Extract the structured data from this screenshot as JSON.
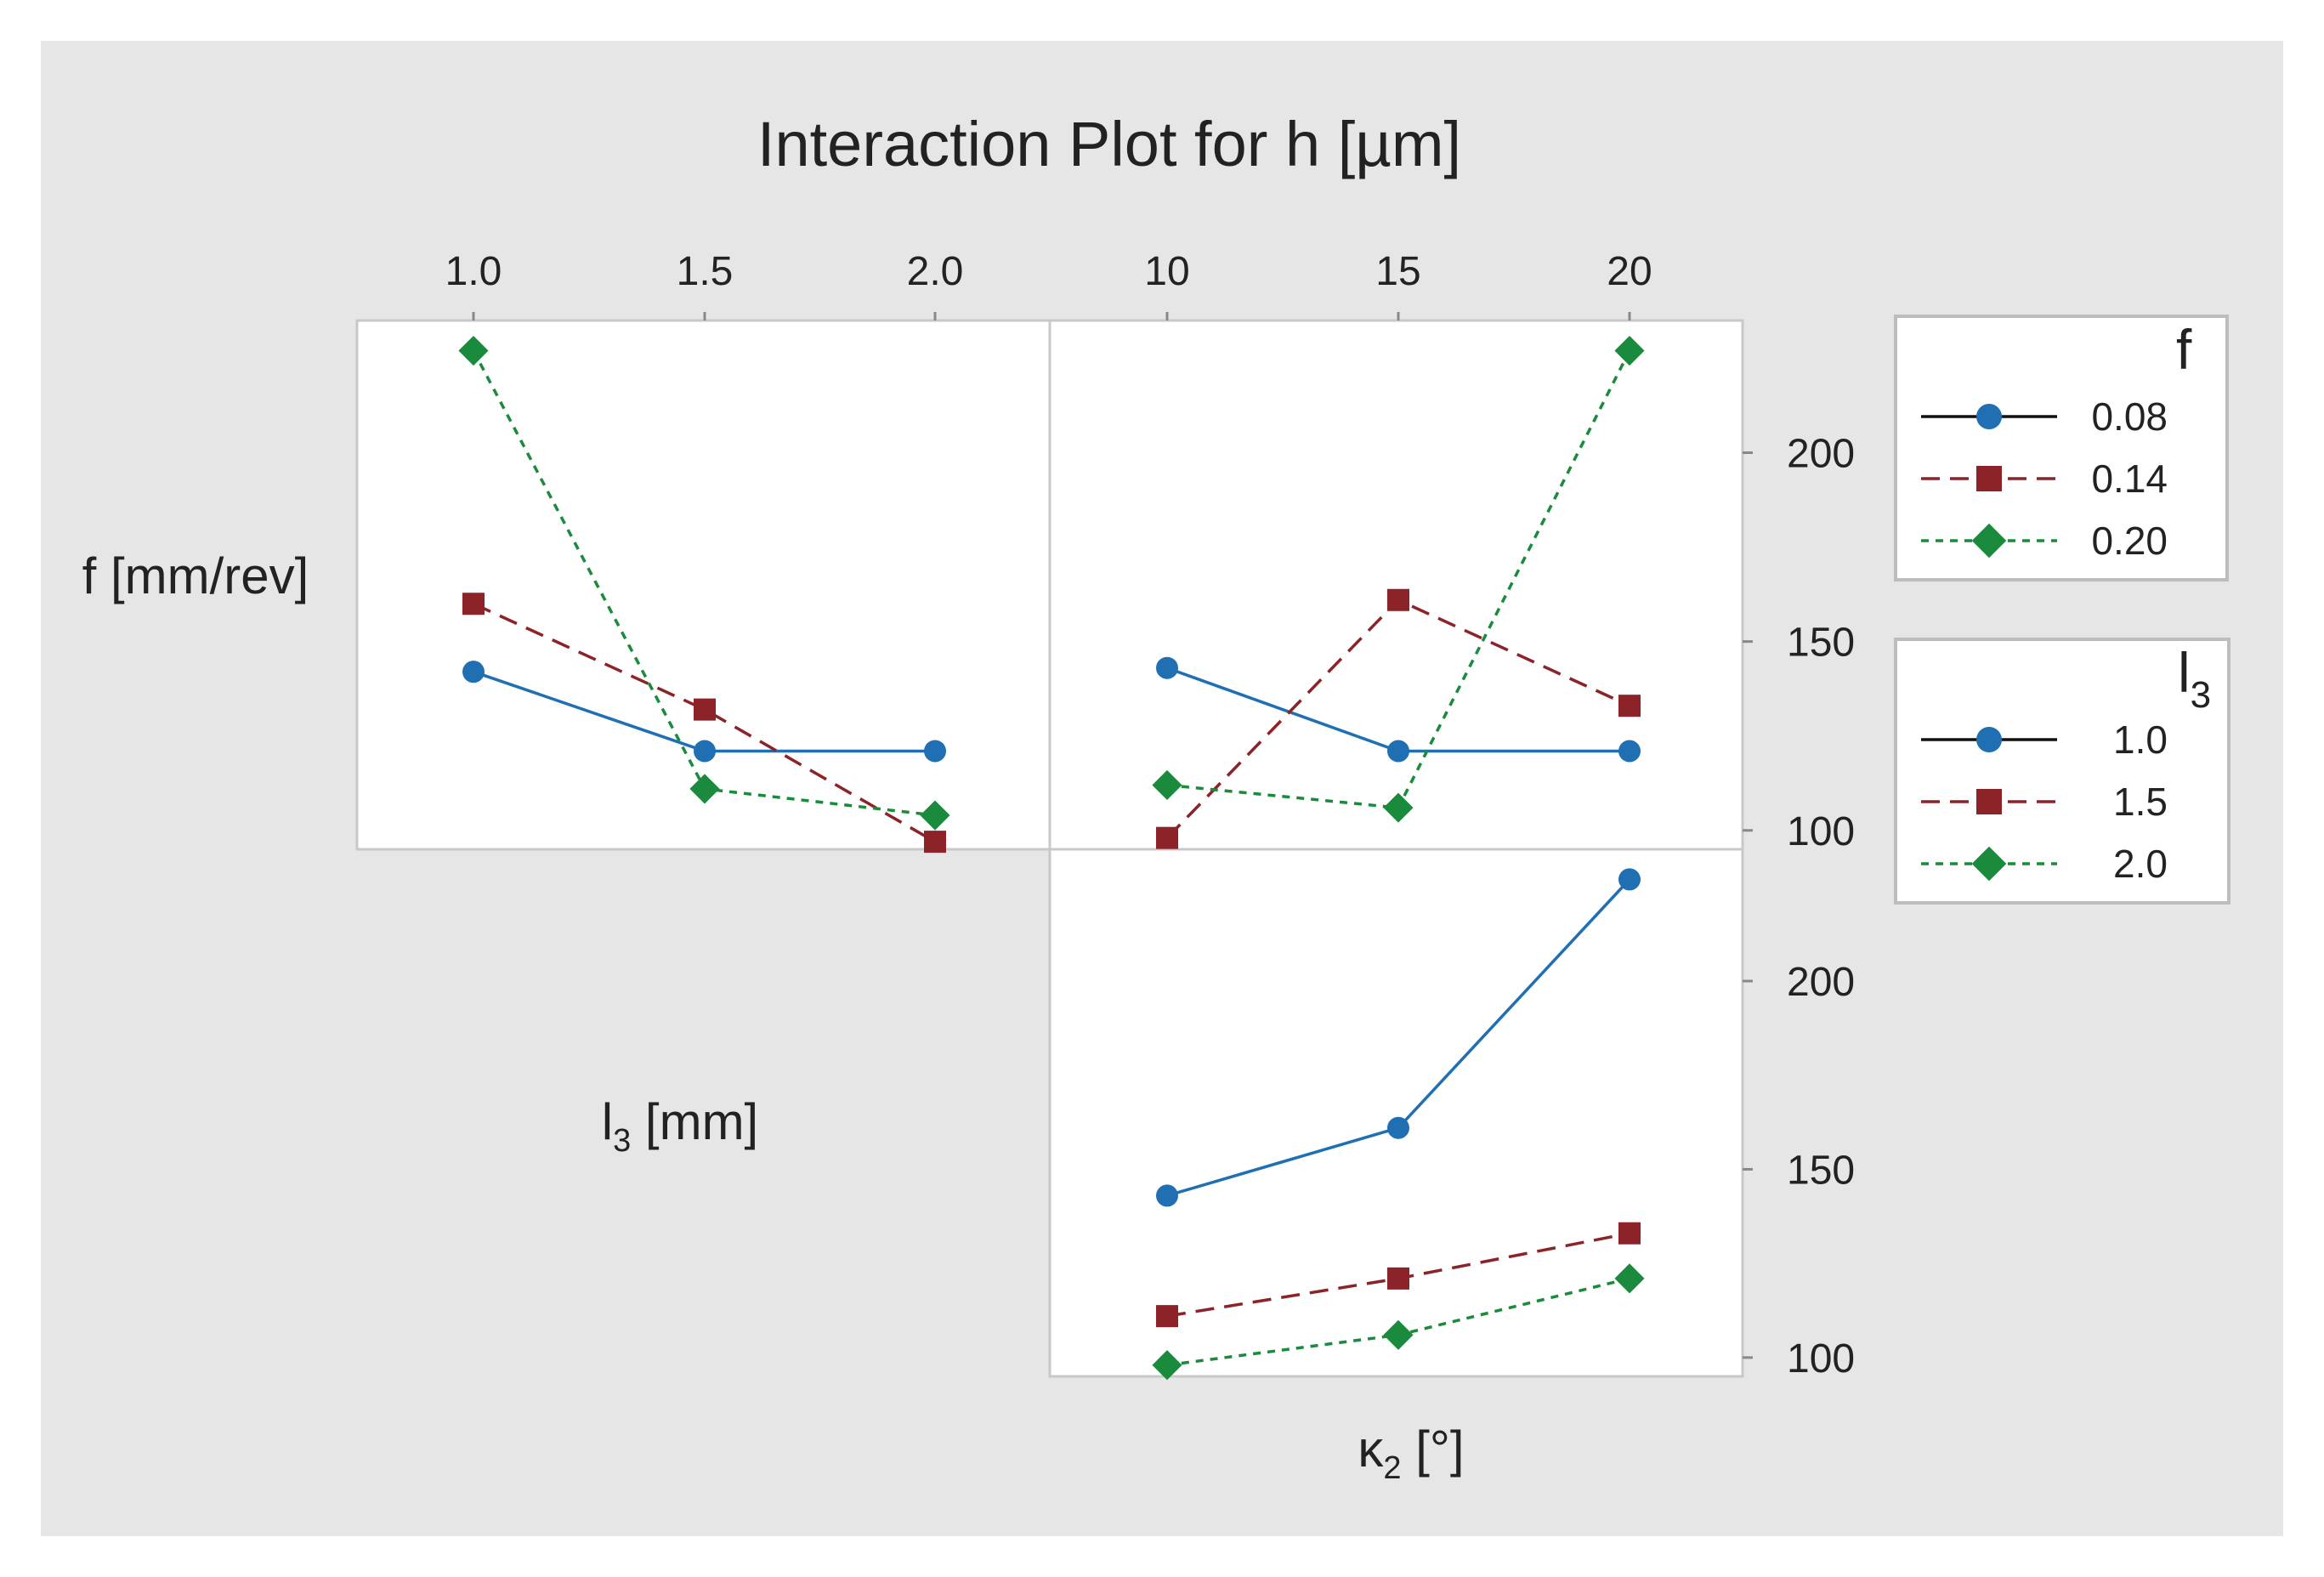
{
  "figure": {
    "title": "Interaction Plot for h [µm]",
    "background": "#e6e6e6",
    "panel_background": "#ffffff"
  },
  "colors": {
    "series1": "#1f6fb2",
    "series2": "#8c2328",
    "series3": "#1a8a3c"
  },
  "chart_data": [
    {
      "type": "line",
      "panel": "top-left",
      "trace_variable": "f",
      "x_variable": "l3",
      "x_ticks": [
        "1.0",
        "1.5",
        "2.0"
      ],
      "x": [
        1.0,
        1.5,
        2.0
      ],
      "ylim": [
        95,
        235
      ],
      "y_ticks": [
        100,
        150,
        200
      ],
      "series": [
        {
          "name": "0.08",
          "marker": "circle",
          "line": "solid",
          "values": [
            142,
            121,
            121
          ]
        },
        {
          "name": "0.14",
          "marker": "square",
          "line": "dashed",
          "values": [
            160,
            132,
            97
          ]
        },
        {
          "name": "0.20",
          "marker": "diamond",
          "line": "dotted",
          "values": [
            227,
            111,
            104
          ]
        }
      ]
    },
    {
      "type": "line",
      "panel": "top-right",
      "trace_variable": "f",
      "x_variable": "κ2",
      "x_ticks": [
        "10",
        "15",
        "20"
      ],
      "x": [
        10,
        15,
        20
      ],
      "ylim": [
        95,
        235
      ],
      "y_ticks": [
        100,
        150,
        200
      ],
      "ylabel": "f [mm/rev]",
      "series": [
        {
          "name": "0.08",
          "marker": "circle",
          "line": "solid",
          "values": [
            143,
            121,
            121
          ]
        },
        {
          "name": "0.14",
          "marker": "square",
          "line": "dashed",
          "values": [
            98,
            161,
            133
          ]
        },
        {
          "name": "0.20",
          "marker": "diamond",
          "line": "dotted",
          "values": [
            112,
            106,
            227
          ]
        }
      ]
    },
    {
      "type": "line",
      "panel": "bottom-right",
      "trace_variable": "l3",
      "x_variable": "κ2",
      "x_ticks": [
        "10",
        "15",
        "20"
      ],
      "x": [
        10,
        15,
        20
      ],
      "ylim": [
        95,
        235
      ],
      "y_ticks": [
        100,
        150,
        200
      ],
      "ylabel": "l3 [mm]",
      "xlabel": "κ2 [°]",
      "series": [
        {
          "name": "1.0",
          "marker": "circle",
          "line": "solid",
          "values": [
            143,
            161,
            227
          ]
        },
        {
          "name": "1.5",
          "marker": "square",
          "line": "dashed",
          "values": [
            111,
            121,
            133
          ]
        },
        {
          "name": "2.0",
          "marker": "diamond",
          "line": "dotted",
          "values": [
            98,
            106,
            121
          ]
        }
      ]
    }
  ],
  "axis_labels": {
    "f_row": "f [mm/rev]",
    "l3_row_main": "l",
    "l3_row_sub": "3",
    "l3_row_unit": " [mm]",
    "kappa_main": "κ",
    "kappa_sub": "2",
    "kappa_unit": " [°]"
  },
  "legends": [
    {
      "title": "f",
      "title_sub": "",
      "entries": [
        {
          "label": "0.08",
          "marker": "circle",
          "line": "solid"
        },
        {
          "label": "0.14",
          "marker": "square",
          "line": "dashed"
        },
        {
          "label": "0.20",
          "marker": "diamond",
          "line": "dotted"
        }
      ]
    },
    {
      "title": "l",
      "title_sub": "3",
      "entries": [
        {
          "label": "1.0",
          "marker": "circle",
          "line": "solid"
        },
        {
          "label": "1.5",
          "marker": "square",
          "line": "dashed"
        },
        {
          "label": "2.0",
          "marker": "diamond",
          "line": "dotted"
        }
      ]
    }
  ]
}
